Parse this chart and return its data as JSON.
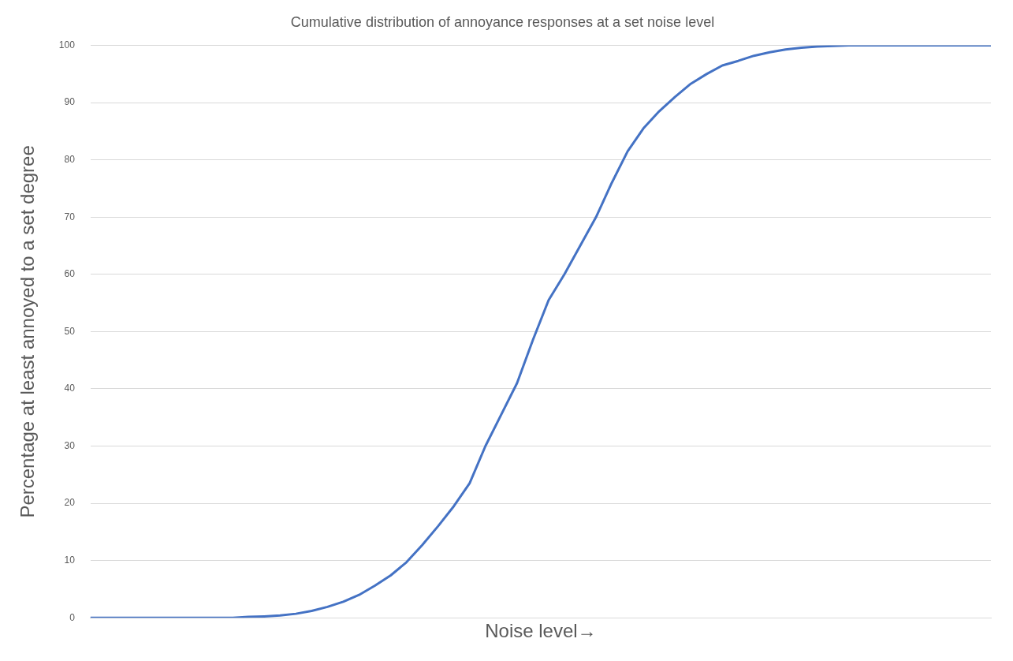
{
  "chart_data": {
    "type": "line",
    "title": "Cumulative distribution of annoyance responses at a set noise level",
    "xlabel": "Noise level→",
    "ylabel": "Percentage at least annoyed to a set degree",
    "categories": [
      null,
      null,
      null,
      null,
      null,
      null,
      null,
      null,
      null,
      null,
      null,
      null,
      null,
      null,
      null,
      null,
      null,
      null,
      null,
      null,
      null,
      null,
      null,
      null,
      null,
      null,
      null,
      null,
      null,
      null,
      null,
      null,
      null,
      null,
      null,
      null,
      null,
      null,
      null,
      null,
      null,
      null,
      null,
      null,
      null,
      null,
      null,
      null,
      null,
      null,
      null,
      null,
      null,
      null,
      null,
      null,
      null,
      null
    ],
    "series": [
      {
        "color": "#4472c4",
        "values": [
          0,
          0,
          0,
          0,
          0,
          0,
          0,
          0,
          0,
          0,
          0.15,
          0.25,
          0.4,
          0.7,
          1.2,
          1.9,
          2.8,
          4.0,
          5.6,
          7.4,
          9.7,
          12.7,
          16,
          19.5,
          23.5,
          30,
          35.5,
          41,
          48.5,
          55.5,
          60,
          65,
          70,
          76,
          81.5,
          85.5,
          88.5,
          91,
          93.3,
          95,
          96.5,
          97.3,
          98.2,
          98.8,
          99.3,
          99.6,
          99.8,
          99.9,
          100,
          100,
          100,
          100,
          100,
          100,
          100,
          100,
          100,
          100
        ]
      }
    ],
    "ylim": [
      0,
      100
    ],
    "yticks": [
      0,
      10,
      20,
      30,
      40,
      50,
      60,
      70,
      80,
      90,
      100
    ],
    "grid": "y",
    "tick_labels": "y",
    "marker": "none",
    "line_style": "solid",
    "legend": false
  }
}
